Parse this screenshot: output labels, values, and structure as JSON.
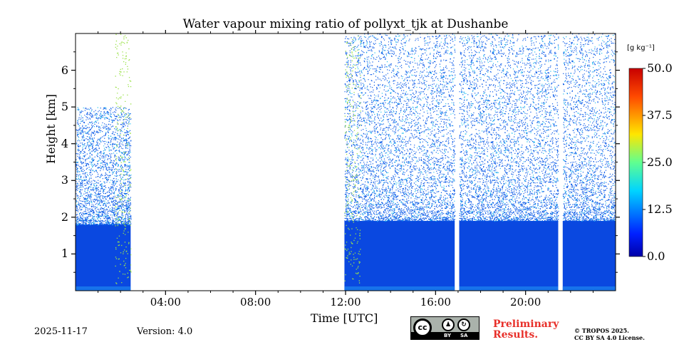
{
  "chart_data": {
    "type": "heatmap",
    "title": "Water vapour mixing ratio of pollyxt_tjk at Dushanbe",
    "xlabel": "Time [UTC]",
    "ylabel": "Height [km]",
    "x_range_hours": [
      0,
      24
    ],
    "y_range_km": [
      0,
      7
    ],
    "x_ticks": [
      {
        "hour": 4,
        "label": "04:00"
      },
      {
        "hour": 8,
        "label": "08:00"
      },
      {
        "hour": 12,
        "label": "12:00"
      },
      {
        "hour": 16,
        "label": "16:00"
      },
      {
        "hour": 20,
        "label": "20:00"
      }
    ],
    "y_ticks": [
      {
        "km": 1,
        "label": "1"
      },
      {
        "km": 2,
        "label": "2"
      },
      {
        "km": 3,
        "label": "3"
      },
      {
        "km": 4,
        "label": "4"
      },
      {
        "km": 5,
        "label": "5"
      },
      {
        "km": 6,
        "label": "6"
      }
    ],
    "colorbar": {
      "unit": "[g kg⁻¹]",
      "range": [
        0,
        50
      ],
      "ticks": [
        "0.0",
        "12.5",
        "25.0",
        "37.5",
        "50.0"
      ],
      "tick_values": [
        0,
        12.5,
        25,
        37.5,
        50
      ],
      "colormap": "jet"
    },
    "data_segments": [
      {
        "name": "night-profile",
        "start_hour": 0,
        "end_hour": 2.45,
        "top_km": 5.0,
        "dense_top_km": 1.8
      },
      {
        "name": "afternoon-evening",
        "start_hour": 11.95,
        "end_hour": 16.85,
        "top_km": 7.0,
        "dense_top_km": 1.9
      },
      {
        "name": "evening-1",
        "start_hour": 17.05,
        "end_hour": 21.45,
        "top_km": 7.0,
        "dense_top_km": 1.9
      },
      {
        "name": "evening-2",
        "start_hour": 21.65,
        "end_hour": 24.0,
        "top_km": 7.0,
        "dense_top_km": 1.9
      }
    ],
    "gaps": [
      {
        "start_hour": 2.45,
        "end_hour": 11.95
      },
      {
        "start_hour": 16.85,
        "end_hour": 17.05
      },
      {
        "start_hour": 21.45,
        "end_hour": 21.65
      }
    ]
  },
  "footer": {
    "date": "2025-11-17",
    "version": "Version: 4.0",
    "preliminary_line1": "Preliminary",
    "preliminary_line2": "Results.",
    "copyright_line1": "© TROPOS 2025.",
    "copyright_line2": "CC BY SA 4.0 License."
  },
  "license_badge": {
    "cc": "cc",
    "by": "BY",
    "sa": "SA"
  }
}
